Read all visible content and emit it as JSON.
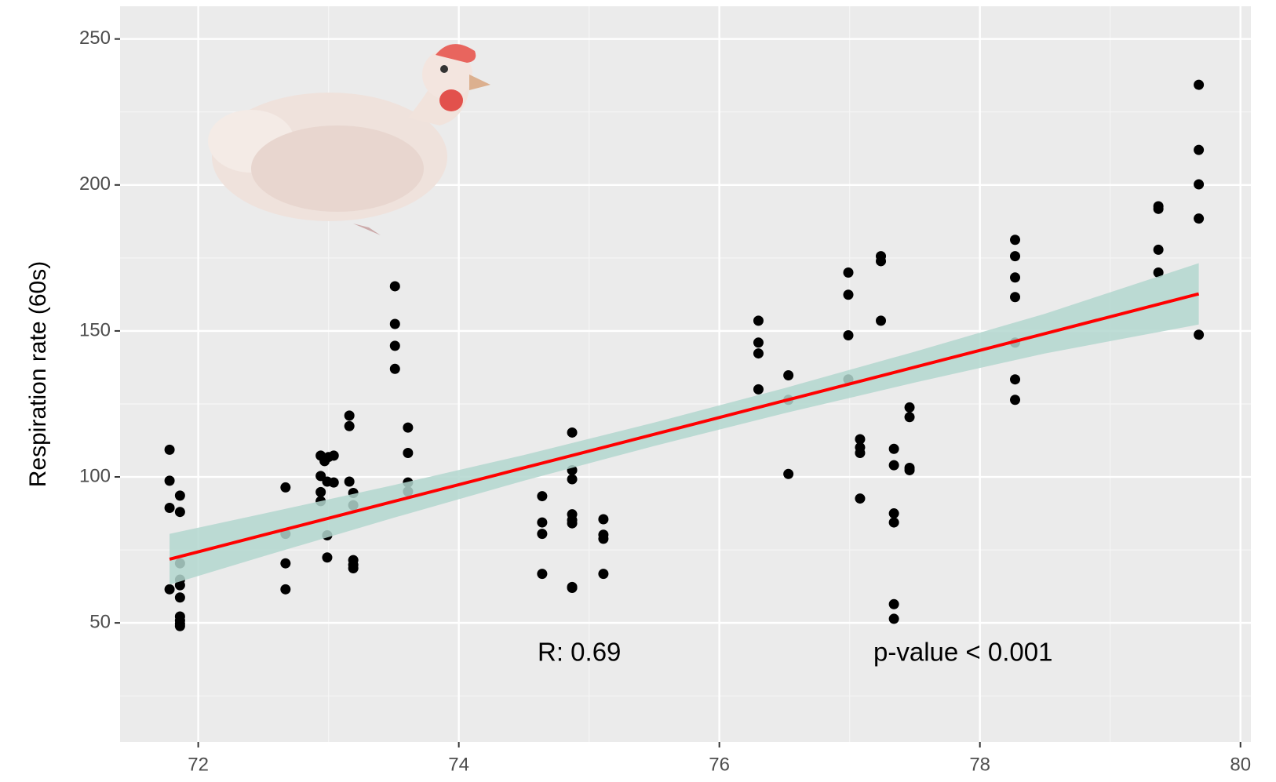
{
  "chart_data": {
    "type": "scatter",
    "y_label": "Respiration rate (60s)",
    "x": [
      71.78,
      71.78,
      71.78,
      71.78,
      71.86,
      71.86,
      71.86,
      71.86,
      71.86,
      71.86,
      71.86,
      71.86,
      71.86,
      71.86,
      72.67,
      72.67,
      72.67,
      72.67,
      72.94,
      73.0,
      72.97,
      73.04,
      72.94,
      72.99,
      73.04,
      72.94,
      72.94,
      72.99,
      72.99,
      73.16,
      73.16,
      73.16,
      73.19,
      73.19,
      73.19,
      73.19,
      73.19,
      73.51,
      73.51,
      73.51,
      73.51,
      73.61,
      73.61,
      73.61,
      73.61,
      74.64,
      74.64,
      74.64,
      74.64,
      74.87,
      74.87,
      74.87,
      74.87,
      74.87,
      74.87,
      74.87,
      74.87,
      75.11,
      75.11,
      75.11,
      75.11,
      76.3,
      76.3,
      76.3,
      76.3,
      76.53,
      76.53,
      76.53,
      76.99,
      76.99,
      76.99,
      76.99,
      77.08,
      77.08,
      77.08,
      77.08,
      77.24,
      77.24,
      77.24,
      77.34,
      77.34,
      77.34,
      77.34,
      77.34,
      77.34,
      77.46,
      77.46,
      77.46,
      77.46,
      78.27,
      78.27,
      78.27,
      78.27,
      78.27,
      78.27,
      78.27,
      79.37,
      79.37,
      79.37,
      79.37,
      79.68,
      79.68,
      79.68,
      79.68,
      79.68
    ],
    "values": [
      109.3,
      98.7,
      89.4,
      61.5,
      93.6,
      88,
      70.4,
      64.8,
      62.9,
      58.7,
      52.2,
      50.8,
      48.9,
      49.7,
      96.4,
      80.5,
      70.4,
      61.5,
      107.3,
      106.8,
      105.4,
      107.3,
      100.3,
      98.4,
      98.1,
      94.8,
      91.7,
      80,
      72.4,
      121,
      117.4,
      98.4,
      94.5,
      90.3,
      71.5,
      69.9,
      68.7,
      165.3,
      152.4,
      144.9,
      137,
      116.9,
      108.2,
      98.1,
      95,
      93.4,
      84.4,
      80.5,
      66.8,
      115.2,
      102.3,
      99.2,
      87.2,
      85.2,
      84.1,
      62.3,
      62,
      85.5,
      80.2,
      78.8,
      66.8,
      153.5,
      146,
      142.3,
      130,
      134.8,
      126.4,
      101,
      170,
      162.4,
      148.5,
      133.4,
      112.9,
      110.1,
      108.2,
      92.6,
      175.6,
      173.9,
      153.5,
      109.6,
      104,
      87.5,
      84.4,
      56.4,
      51.4,
      123.8,
      120.5,
      103.1,
      102.3,
      181.2,
      175.6,
      168.3,
      161.6,
      146,
      133.4,
      126.4,
      192.7,
      191.8,
      177.8,
      170,
      234.3,
      212,
      200.2,
      188.5,
      148.7
    ],
    "color": "#000000",
    "fit": {
      "x": [
        71.78,
        72.5,
        73.5,
        74.5,
        75.5,
        76.5,
        77.5,
        78.5,
        79.68
      ],
      "values": [
        71.8,
        80.1,
        91.6,
        103.1,
        114.6,
        126.1,
        137.6,
        149.1,
        162.7
      ],
      "band_lower": [
        63.1,
        72.8,
        86,
        98.7,
        110.6,
        121.8,
        132.3,
        142.3,
        152.2
      ],
      "band_upper": [
        80.5,
        87.4,
        97.2,
        107.5,
        118.6,
        130.4,
        142.9,
        155.9,
        173.2
      ],
      "color": "#ff0000",
      "band_color": "#b3d7cf"
    },
    "annotations": [
      "R: 0.69",
      "p-value < 0.001"
    ],
    "xlim": [
      71.4,
      80.08
    ],
    "ylim": [
      9.2,
      261.2
    ],
    "xticks": [
      72,
      74,
      76,
      78,
      80
    ],
    "yticks": [
      50,
      100,
      150,
      200,
      250
    ],
    "x_minor_grid": [
      73,
      75,
      77,
      79
    ],
    "y_minor_grid": [
      25,
      75,
      125,
      175,
      225
    ],
    "grid": true
  }
}
